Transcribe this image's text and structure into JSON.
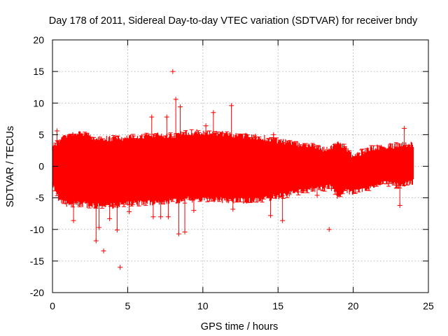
{
  "chart_data": {
    "type": "scatter",
    "title": "Day 178 of 2011, Sidereal Day-to-day VTEC variation (SDTVAR) for receiver bndy",
    "xlabel": "GPS time / hours",
    "ylabel": "SDTVAR / TECUs",
    "xlim": [
      0,
      25
    ],
    "ylim": [
      -20,
      20
    ],
    "xticks": [
      "0",
      "5",
      "10",
      "15",
      "20",
      "25"
    ],
    "yticks": [
      "-20",
      "-15",
      "-10",
      "-5",
      "0",
      "5",
      "10",
      "15",
      "20"
    ],
    "grid": true,
    "marker": "plus",
    "series": [
      {
        "name": "SDTVAR",
        "color": "#ff0000",
        "x_range": [
          0,
          24
        ],
        "band_upper": [
          [
            0,
            2.5
          ],
          [
            0.5,
            3.8
          ],
          [
            1,
            4.5
          ],
          [
            2,
            4.6
          ],
          [
            3,
            3.8
          ],
          [
            4,
            3.9
          ],
          [
            5,
            4.0
          ],
          [
            6,
            4.3
          ],
          [
            7,
            4.5
          ],
          [
            8,
            4.3
          ],
          [
            9,
            4.8
          ],
          [
            10,
            4.9
          ],
          [
            11,
            4.7
          ],
          [
            12,
            4.4
          ],
          [
            13,
            4.3
          ],
          [
            14,
            4.0
          ],
          [
            15,
            3.5
          ],
          [
            16,
            3.1
          ],
          [
            17,
            2.8
          ],
          [
            18,
            2.2
          ],
          [
            18.5,
            2.5
          ],
          [
            19,
            3.2
          ],
          [
            19.5,
            2.5
          ],
          [
            20,
            1.0
          ],
          [
            21,
            2.2
          ],
          [
            22,
            2.6
          ],
          [
            23,
            2.8
          ],
          [
            24,
            3.0
          ]
        ],
        "band_lower": [
          [
            0,
            -2.5
          ],
          [
            0.5,
            -5.0
          ],
          [
            1,
            -5.5
          ],
          [
            2,
            -5.5
          ],
          [
            3,
            -5.8
          ],
          [
            4,
            -5.8
          ],
          [
            5,
            -5.5
          ],
          [
            6,
            -5.3
          ],
          [
            7,
            -5.2
          ],
          [
            8,
            -5.0
          ],
          [
            9,
            -4.8
          ],
          [
            10,
            -4.7
          ],
          [
            11,
            -4.8
          ],
          [
            12,
            -4.9
          ],
          [
            13,
            -5.0
          ],
          [
            14,
            -4.7
          ],
          [
            15,
            -4.3
          ],
          [
            16,
            -3.8
          ],
          [
            17,
            -3.3
          ],
          [
            18,
            -3.0
          ],
          [
            18.5,
            -2.8
          ],
          [
            19,
            -4.3
          ],
          [
            19.5,
            -3.5
          ],
          [
            20,
            -3.6
          ],
          [
            21,
            -3.2
          ],
          [
            22,
            -2.0
          ],
          [
            23,
            -2.6
          ],
          [
            24,
            -2.0
          ]
        ],
        "outliers": [
          [
            8.0,
            15.0
          ],
          [
            8.2,
            10.6
          ],
          [
            8.5,
            9.4
          ],
          [
            11.9,
            9.6
          ],
          [
            10.7,
            8.5
          ],
          [
            6.6,
            7.8
          ],
          [
            7.6,
            7.8
          ],
          [
            0.3,
            5.6
          ],
          [
            10.2,
            6.4
          ],
          [
            14.7,
            5.0
          ],
          [
            23.4,
            6.0
          ],
          [
            4.5,
            -16.0
          ],
          [
            3.4,
            -13.4
          ],
          [
            2.9,
            -11.8
          ],
          [
            8.4,
            -10.7
          ],
          [
            8.8,
            -10.4
          ],
          [
            18.4,
            -10.0
          ],
          [
            4.3,
            -10.1
          ],
          [
            3.1,
            -9.7
          ],
          [
            6.7,
            -8.0
          ],
          [
            7.2,
            -8.0
          ],
          [
            7.7,
            -8.0
          ],
          [
            14.5,
            -7.8
          ],
          [
            15.3,
            -8.6
          ],
          [
            9.4,
            -7.0
          ],
          [
            12.0,
            -6.8
          ],
          [
            1.4,
            -8.6
          ],
          [
            3.8,
            -8.3
          ],
          [
            23.1,
            -6.2
          ],
          [
            17.6,
            -4.6
          ],
          [
            5.1,
            -7.2
          ]
        ]
      }
    ]
  }
}
